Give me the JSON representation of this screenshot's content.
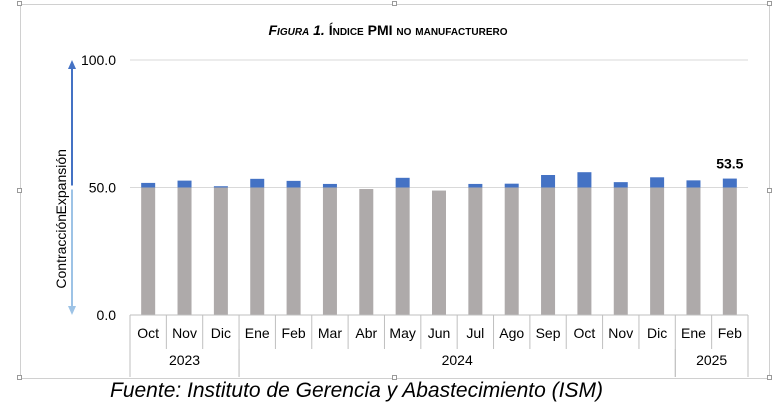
{
  "figure": {
    "title_prefix": "Figura 1.",
    "title_main": "Índice PMI no manufacturero",
    "source": "Fuente: Instituto de Gerencia y Abastecimiento (ISM)"
  },
  "chart_data": {
    "type": "bar",
    "title": "Figura 1. Índice PMI no manufacturero",
    "categories": [
      "Oct",
      "Nov",
      "Dic",
      "Ene",
      "Feb",
      "Mar",
      "Abr",
      "May",
      "Jun",
      "Jul",
      "Ago",
      "Sep",
      "Oct",
      "Nov",
      "Dic",
      "Ene",
      "Feb"
    ],
    "year_groups": [
      {
        "label": "2023",
        "count": 3
      },
      {
        "label": "2024",
        "count": 12
      },
      {
        "label": "2025",
        "count": 2
      }
    ],
    "values": [
      51.8,
      52.7,
      50.5,
      53.4,
      52.6,
      51.4,
      49.4,
      53.8,
      48.8,
      51.4,
      51.5,
      54.9,
      56.0,
      52.1,
      54.0,
      52.8,
      53.5
    ],
    "baseline": 50.0,
    "series": [
      {
        "name": "Contracción",
        "color": "#aeaaaa"
      },
      {
        "name": "Expansión",
        "color": "#4472c4"
      }
    ],
    "ylim": [
      0,
      100
    ],
    "yticks": [
      "0.0",
      "50.0",
      "100.0"
    ],
    "ylabel_upper": "Expansión",
    "ylabel_lower": "Contracción",
    "data_label": {
      "index": 16,
      "text": "53.5"
    },
    "arrow_up_color": "#4472c4",
    "arrow_down_color": "#9dc3e6",
    "grid": true
  }
}
